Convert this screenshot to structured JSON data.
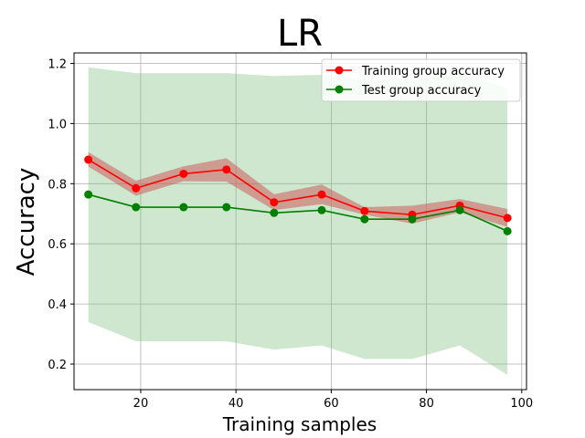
{
  "chart_data": {
    "type": "line",
    "title": "LR",
    "xlabel": "Training samples",
    "ylabel": "Accuracy",
    "xlim": [
      6,
      101
    ],
    "ylim": [
      0.115,
      1.235
    ],
    "xticks": [
      20,
      40,
      60,
      80,
      100
    ],
    "yticks": [
      0.2,
      0.4,
      0.6,
      0.8,
      1.0,
      1.2
    ],
    "xtick_labels": [
      "20",
      "40",
      "60",
      "80",
      "100"
    ],
    "ytick_labels": [
      "0.2",
      "0.4",
      "0.6",
      "0.8",
      "1.0",
      "1.2"
    ],
    "grid": true,
    "legend_position": "top-right",
    "x": [
      9,
      19,
      29,
      38,
      48,
      58,
      67,
      77,
      87,
      97
    ],
    "series": [
      {
        "name": "Training group accuracy",
        "color": "#ff0000",
        "band_color": "#cd5c5c",
        "values": [
          0.88,
          0.785,
          0.833,
          0.847,
          0.738,
          0.764,
          0.709,
          0.697,
          0.727,
          0.686
        ],
        "band_upper": [
          0.905,
          0.81,
          0.858,
          0.885,
          0.765,
          0.797,
          0.722,
          0.727,
          0.749,
          0.716
        ],
        "band_lower": [
          0.857,
          0.76,
          0.808,
          0.807,
          0.712,
          0.732,
          0.697,
          0.667,
          0.705,
          0.656
        ]
      },
      {
        "name": "Test group accuracy",
        "color": "#008000",
        "band_color": "#7fbf7f",
        "values": [
          0.764,
          0.722,
          0.722,
          0.722,
          0.703,
          0.712,
          0.682,
          0.682,
          0.712,
          0.642
        ],
        "band_upper": [
          1.187,
          1.168,
          1.168,
          1.168,
          1.158,
          1.162,
          1.147,
          1.147,
          1.161,
          1.12
        ],
        "band_lower": [
          0.34,
          0.276,
          0.276,
          0.276,
          0.248,
          0.262,
          0.217,
          0.217,
          0.262,
          0.164
        ]
      }
    ]
  }
}
